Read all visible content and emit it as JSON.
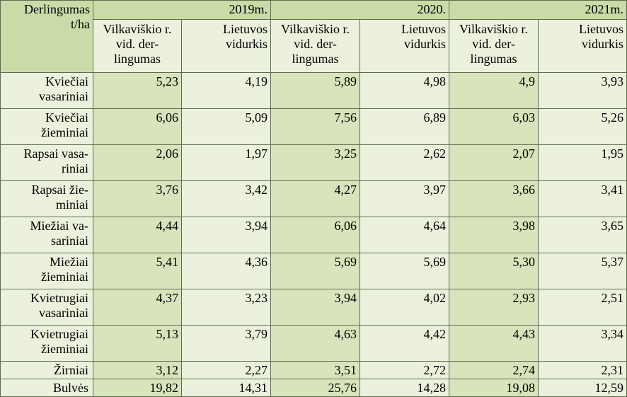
{
  "corner_label": "Derlingumas t/ha",
  "years": [
    "2019m.",
    "2020.",
    "2021m."
  ],
  "subheaders": {
    "district": "Vilkaviškio r. vid. der-lingumas",
    "national": "Lietuvos vidurkis"
  },
  "rows": [
    {
      "crop": "Kviečiai vasariniai",
      "values": [
        "5,23",
        "4,19",
        "5,89",
        "4,98",
        "4,9",
        "3,93"
      ]
    },
    {
      "crop": "Kviečiai žieminiai",
      "values": [
        "6,06",
        "5,09",
        "7,56",
        "6,89",
        "6,03",
        "5,26"
      ]
    },
    {
      "crop": "Rapsai vasa-riniai",
      "values": [
        "2,06",
        "1,97",
        "3,25",
        "2,62",
        "2,07",
        "1,95"
      ]
    },
    {
      "crop": "Rapsai žie-miniai",
      "values": [
        "3,76",
        "3,42",
        "4,27",
        "3,97",
        "3,66",
        "3,41"
      ]
    },
    {
      "crop": "Miežiai va-sariniai",
      "values": [
        "4,44",
        "3,94",
        "6,06",
        "4,64",
        "3,98",
        "3,65"
      ]
    },
    {
      "crop": "Miežiai žieminiai",
      "values": [
        "5,41",
        "4,36",
        "5,69",
        "5,69",
        "5,30",
        "5,37"
      ]
    },
    {
      "crop": "Kvietrugiai vasariniai",
      "values": [
        "4,37",
        "3,23",
        "3,94",
        "4,02",
        "2,93",
        "2,51"
      ]
    },
    {
      "crop": "Kvietrugiai žieminiai",
      "values": [
        "5,13",
        "3,79",
        "4,63",
        "4,42",
        "4,43",
        "3,34"
      ]
    },
    {
      "crop": "Žirniai",
      "values": [
        "3,12",
        "2,27",
        "3,51",
        "2,72",
        "2,74",
        "2,31"
      ]
    },
    {
      "crop": "Bulvės",
      "values": [
        "19,82",
        "14,31",
        "25,76",
        "14,28",
        "19,08",
        "12,59"
      ]
    }
  ],
  "colors": {
    "header_bg": "#c9dca7",
    "district_col_bg": "#d7e4bc",
    "national_col_bg": "#ebf1dd",
    "border": "#5f6b4f"
  }
}
